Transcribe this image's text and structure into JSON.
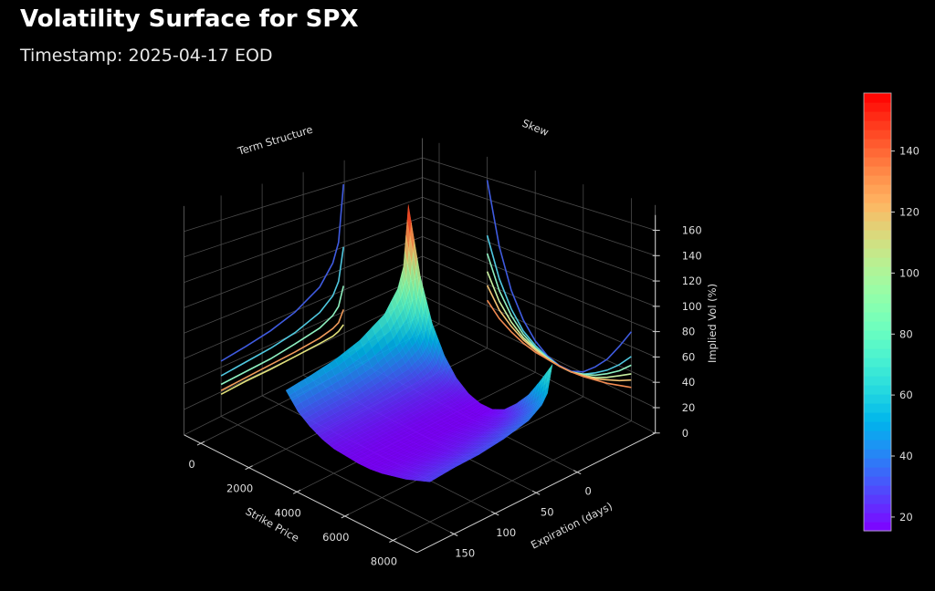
{
  "header": {
    "title": "Volatility Surface for SPX",
    "subtitle": "Timestamp: 2025-04-17 EOD"
  },
  "chart_data": {
    "type": "surface",
    "title": "Volatility Surface for SPX",
    "subtitle": "Timestamp: 2025-04-17 EOD",
    "x_axis": {
      "label": "Strike Price",
      "ticks": [
        0,
        2000,
        4000,
        6000,
        8000
      ],
      "range": [
        -700,
        9000
      ]
    },
    "y_axis": {
      "label": "Expiration (days)",
      "ticks": [
        0,
        50,
        100,
        150
      ],
      "range": [
        -95,
        195
      ]
    },
    "z_axis": {
      "label": "Implied Vol (%)",
      "ticks": [
        0,
        20,
        40,
        60,
        80,
        100,
        120,
        140,
        160
      ],
      "range": [
        0,
        180
      ]
    },
    "colorbar": {
      "colormap": "rainbow",
      "ticks": [
        20,
        40,
        60,
        80,
        100,
        120,
        140
      ],
      "range": [
        15.5,
        159
      ]
    },
    "grid": true,
    "background": "#000000",
    "strikes": [
      2000,
      2500,
      3000,
      3500,
      4000,
      4500,
      5000,
      5500,
      6000,
      6500,
      7000,
      7500,
      8000
    ],
    "expirations": [
      1,
      7,
      14,
      30,
      60,
      90,
      120,
      150
    ],
    "iv": [
      [
        158,
        106,
        89,
        72,
        59,
        52,
        48,
        45
      ],
      [
        100,
        70,
        59,
        49,
        41,
        37,
        35,
        33
      ],
      [
        64,
        47,
        41,
        35,
        31,
        28,
        27,
        26
      ],
      [
        42,
        32,
        29,
        26,
        24,
        23,
        22,
        21
      ],
      [
        28,
        24,
        22,
        21,
        20,
        19,
        19,
        18
      ],
      [
        20,
        19,
        18,
        18,
        17,
        17,
        17,
        17
      ],
      [
        16.5,
        16,
        16,
        16,
        16,
        16,
        16,
        16
      ],
      [
        16.5,
        16,
        16,
        16,
        16,
        16,
        16,
        16
      ],
      [
        21,
        19,
        19,
        18,
        18,
        17,
        17,
        17
      ],
      [
        30,
        25,
        23,
        21,
        20,
        19,
        19,
        19
      ],
      [
        41,
        32,
        29,
        26,
        24,
        22,
        22,
        21
      ],
      [
        56,
        41,
        36,
        32,
        28,
        26,
        25,
        24
      ],
      [
        72,
        52,
        45,
        38,
        33,
        30,
        29,
        27
      ]
    ],
    "projections": {
      "term_structure": {
        "label": "Term Structure",
        "strikes": [
          2000,
          2500,
          3000,
          3500,
          4000
        ],
        "colors": [
          "#3f5be0",
          "#4fc8e0",
          "#8ef0c0",
          "#f09a5a",
          "#e0e07a"
        ]
      },
      "skew": {
        "label": "Skew",
        "expirations": [
          1,
          7,
          14,
          30,
          60,
          150
        ],
        "colors": [
          "#3f5be0",
          "#4fc8e0",
          "#8ef0c0",
          "#c8f0a0",
          "#f0c070",
          "#f08a50"
        ]
      }
    }
  }
}
